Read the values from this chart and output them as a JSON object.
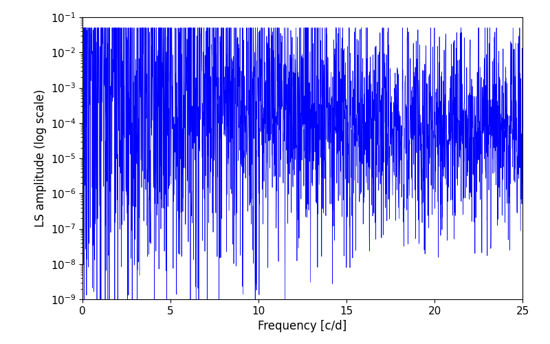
{
  "xlabel": "Frequency [c/d]",
  "ylabel": "LS amplitude (log scale)",
  "title": "",
  "xlim": [
    0,
    25
  ],
  "ylim": [
    1e-09,
    0.1
  ],
  "line_color": "#0000FF",
  "background_color": "#ffffff",
  "figsize": [
    8.0,
    5.0
  ],
  "dpi": 100,
  "xlabel_fontsize": 12,
  "ylabel_fontsize": 12,
  "tick_fontsize": 11,
  "seed": 12345,
  "n_points": 2500,
  "freq_max": 25.0
}
